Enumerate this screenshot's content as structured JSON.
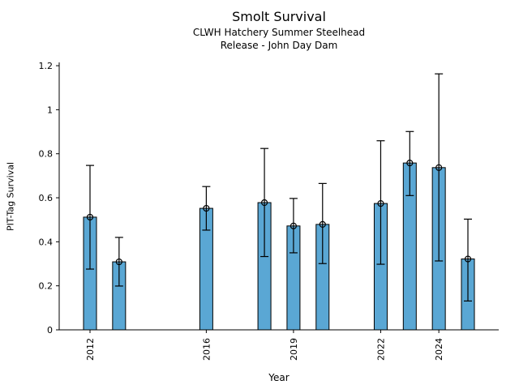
{
  "figure": {
    "background": "#ffffff"
  },
  "chart_data": {
    "type": "bar",
    "title": "Smolt Survival",
    "subtitle1": "CLWH Hatchery Summer Steelhead",
    "subtitle2": "Release - John Day Dam",
    "xlabel": "Year",
    "ylabel": "PIT-Tag Survival",
    "x": [
      2012,
      2013,
      2016,
      2018,
      2019,
      2020,
      2022,
      2023,
      2024,
      2025
    ],
    "values": [
      0.512,
      0.309,
      0.552,
      0.578,
      0.472,
      0.479,
      0.574,
      0.758,
      0.737,
      0.322
    ],
    "error_low": [
      0.276,
      0.199,
      0.453,
      0.333,
      0.35,
      0.301,
      0.298,
      0.61,
      0.313,
      0.131
    ],
    "error_high": [
      0.747,
      0.42,
      0.651,
      0.824,
      0.597,
      0.665,
      0.859,
      0.901,
      1.163,
      0.503
    ],
    "xticks": {
      "values": [
        2012,
        2016,
        2019,
        2022,
        2024
      ],
      "labels": [
        "2012",
        "2016",
        "2019",
        "2022",
        "2024"
      ]
    },
    "yticks": {
      "values": [
        0,
        0.2,
        0.4,
        0.6,
        0.8,
        1.0,
        1.2
      ],
      "labels": [
        "0",
        "0.2",
        "0.4",
        "0.6",
        "0.8",
        "1",
        "1.2"
      ]
    },
    "xlim": [
      2010.94,
      2026.06
    ],
    "ylim": [
      0,
      1.215
    ],
    "grid": false,
    "legend": "none",
    "marker": "open-circle",
    "bar_color": "#5AA7D4",
    "bar_edge_color": "#000000",
    "errorbar_color": "#000000",
    "axis_color": "#000000"
  }
}
